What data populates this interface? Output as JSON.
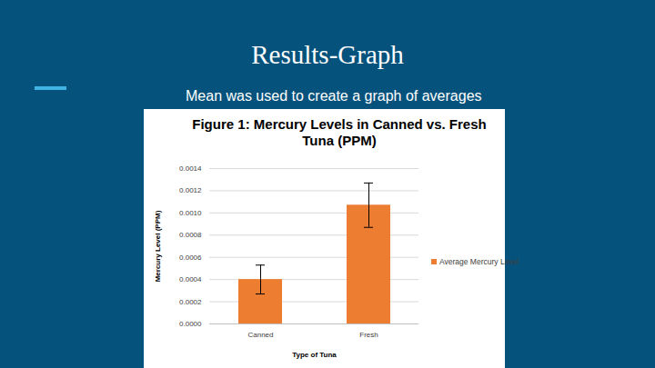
{
  "slide": {
    "title": "Results-Graph",
    "subtitle": "Mean was used to create a graph of averages"
  },
  "chart_data": {
    "type": "bar",
    "title": "Figure 1: Mercury Levels in Canned vs. Fresh Tuna (PPM)",
    "x_label": "Type of Tuna",
    "y_label": "Mercury Level (PPM)",
    "categories": [
      "Canned",
      "Fresh"
    ],
    "series": [
      {
        "name": "Average Mercury Level",
        "color": "#ed7d31",
        "values": [
          0.0004,
          0.00107
        ],
        "errors": [
          0.00013,
          0.0002
        ]
      }
    ],
    "ylim": [
      0,
      0.0014
    ],
    "yticks": [
      {
        "value": 0,
        "label": "0.0000"
      },
      {
        "value": 0.0002,
        "label": "0.0002"
      },
      {
        "value": 0.0004,
        "label": "0.0004"
      },
      {
        "value": 0.0006,
        "label": "0.0006"
      },
      {
        "value": 0.0008,
        "label": "0.0008"
      },
      {
        "value": 0.001,
        "label": "0.0010"
      },
      {
        "value": 0.0012,
        "label": "0.0012"
      },
      {
        "value": 0.0014,
        "label": "0.0014"
      }
    ],
    "grid": true,
    "legend": "right"
  }
}
